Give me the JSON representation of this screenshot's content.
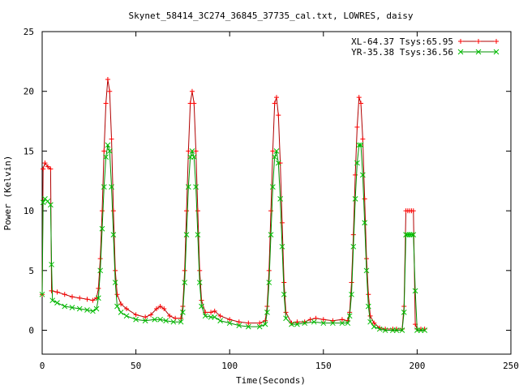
{
  "chart_data": {
    "type": "line",
    "title": "Skynet_58414_3C274_36845_37735_cal.txt, LOWRES, daisy",
    "xlabel": "Time(Seconds)",
    "ylabel": "Power (Kelvin)",
    "xlim": [
      0,
      250
    ],
    "ylim": [
      -2,
      25
    ],
    "xticks": [
      0,
      50,
      100,
      150,
      200,
      250
    ],
    "yticks": [
      0,
      5,
      10,
      15,
      20,
      25
    ],
    "grid": false,
    "legend_position": "top-right",
    "series": [
      {
        "name": "XL-64.37 Tsys:65.95",
        "color": "#ff0000",
        "line_color": "#b00000",
        "marker": "plus",
        "points": [
          [
            0,
            3
          ],
          [
            0.5,
            13.5
          ],
          [
            1.5,
            14
          ],
          [
            3,
            13.7
          ],
          [
            4.5,
            13.5
          ],
          [
            5,
            3.3
          ],
          [
            8,
            3.2
          ],
          [
            12,
            3
          ],
          [
            16,
            2.8
          ],
          [
            20,
            2.7
          ],
          [
            24,
            2.6
          ],
          [
            27,
            2.5
          ],
          [
            29,
            2.7
          ],
          [
            30,
            3.5
          ],
          [
            31,
            6
          ],
          [
            32,
            10
          ],
          [
            33,
            15
          ],
          [
            34,
            19
          ],
          [
            35,
            21
          ],
          [
            36,
            20
          ],
          [
            37,
            16
          ],
          [
            38,
            10
          ],
          [
            39,
            5
          ],
          [
            40,
            3
          ],
          [
            42,
            2.2
          ],
          [
            45,
            1.8
          ],
          [
            50,
            1.3
          ],
          [
            55,
            1.1
          ],
          [
            58,
            1.3
          ],
          [
            61,
            1.8
          ],
          [
            63,
            2
          ],
          [
            65,
            1.8
          ],
          [
            68,
            1.2
          ],
          [
            71,
            1
          ],
          [
            74,
            1
          ],
          [
            75,
            2
          ],
          [
            76,
            5
          ],
          [
            77,
            10
          ],
          [
            78,
            15
          ],
          [
            79,
            19
          ],
          [
            80,
            20
          ],
          [
            81,
            19
          ],
          [
            82,
            15
          ],
          [
            83,
            10
          ],
          [
            84,
            5
          ],
          [
            85,
            2.5
          ],
          [
            87,
            1.5
          ],
          [
            90,
            1.5
          ],
          [
            92,
            1.6
          ],
          [
            95,
            1.2
          ],
          [
            100,
            0.9
          ],
          [
            105,
            0.7
          ],
          [
            110,
            0.6
          ],
          [
            116,
            0.6
          ],
          [
            119,
            0.8
          ],
          [
            120,
            2
          ],
          [
            121,
            5
          ],
          [
            122,
            10
          ],
          [
            123,
            15
          ],
          [
            124,
            19
          ],
          [
            125,
            19.5
          ],
          [
            126,
            18
          ],
          [
            127,
            14
          ],
          [
            128,
            9
          ],
          [
            129,
            4
          ],
          [
            130,
            1.5
          ],
          [
            133,
            0.6
          ],
          [
            136,
            0.7
          ],
          [
            140,
            0.7
          ],
          [
            143,
            0.9
          ],
          [
            146,
            1
          ],
          [
            150,
            0.9
          ],
          [
            155,
            0.8
          ],
          [
            160,
            0.9
          ],
          [
            163,
            0.8
          ],
          [
            164,
            1.5
          ],
          [
            165,
            4
          ],
          [
            166,
            8
          ],
          [
            167,
            13
          ],
          [
            168,
            17
          ],
          [
            169,
            19.5
          ],
          [
            170,
            19
          ],
          [
            171,
            16
          ],
          [
            172,
            11
          ],
          [
            173,
            6
          ],
          [
            174,
            3
          ],
          [
            175,
            1.2
          ],
          [
            177,
            0.6
          ],
          [
            180,
            0.2
          ],
          [
            183,
            0.1
          ],
          [
            187,
            0.1
          ],
          [
            189,
            0.1
          ],
          [
            192,
            0.1
          ],
          [
            193,
            2
          ],
          [
            194,
            10
          ],
          [
            195,
            10
          ],
          [
            196,
            10
          ],
          [
            197,
            10
          ],
          [
            198,
            10
          ],
          [
            199,
            0.5
          ],
          [
            200,
            0.1
          ],
          [
            202,
            0.1
          ],
          [
            204,
            0.1
          ]
        ]
      },
      {
        "name": "YR-35.38 Tsys:36.56",
        "color": "#00c000",
        "line_color": "#009000",
        "marker": "cross",
        "points": [
          [
            0,
            3
          ],
          [
            0.5,
            10.7
          ],
          [
            1.5,
            11
          ],
          [
            3,
            10.8
          ],
          [
            4.5,
            10.5
          ],
          [
            5,
            5.5
          ],
          [
            5.5,
            2.5
          ],
          [
            8,
            2.3
          ],
          [
            12,
            2
          ],
          [
            16,
            1.9
          ],
          [
            20,
            1.8
          ],
          [
            24,
            1.7
          ],
          [
            27,
            1.6
          ],
          [
            29,
            1.8
          ],
          [
            30,
            2.7
          ],
          [
            31,
            5
          ],
          [
            32,
            8.5
          ],
          [
            33,
            12
          ],
          [
            34,
            14.5
          ],
          [
            35,
            15.5
          ],
          [
            36,
            15
          ],
          [
            37,
            12
          ],
          [
            38,
            8
          ],
          [
            39,
            4
          ],
          [
            40,
            2
          ],
          [
            42,
            1.5
          ],
          [
            45,
            1.2
          ],
          [
            50,
            0.9
          ],
          [
            55,
            0.8
          ],
          [
            60,
            0.9
          ],
          [
            63,
            0.9
          ],
          [
            66,
            0.8
          ],
          [
            70,
            0.7
          ],
          [
            74,
            0.7
          ],
          [
            75,
            1.5
          ],
          [
            76,
            4
          ],
          [
            77,
            8
          ],
          [
            78,
            12
          ],
          [
            79,
            14.5
          ],
          [
            80,
            15
          ],
          [
            81,
            14.5
          ],
          [
            82,
            12
          ],
          [
            83,
            8
          ],
          [
            84,
            4
          ],
          [
            85,
            2
          ],
          [
            87,
            1.2
          ],
          [
            90,
            1.1
          ],
          [
            92,
            1.1
          ],
          [
            95,
            0.8
          ],
          [
            100,
            0.6
          ],
          [
            105,
            0.4
          ],
          [
            110,
            0.3
          ],
          [
            116,
            0.3
          ],
          [
            119,
            0.5
          ],
          [
            120,
            1.5
          ],
          [
            121,
            4
          ],
          [
            122,
            8
          ],
          [
            123,
            12
          ],
          [
            124,
            14.5
          ],
          [
            125,
            15
          ],
          [
            126,
            14
          ],
          [
            127,
            11
          ],
          [
            128,
            7
          ],
          [
            129,
            3
          ],
          [
            130,
            1
          ],
          [
            133,
            0.5
          ],
          [
            136,
            0.5
          ],
          [
            140,
            0.6
          ],
          [
            145,
            0.7
          ],
          [
            150,
            0.6
          ],
          [
            155,
            0.6
          ],
          [
            160,
            0.6
          ],
          [
            163,
            0.6
          ],
          [
            164,
            1.2
          ],
          [
            165,
            3
          ],
          [
            166,
            7
          ],
          [
            167,
            11
          ],
          [
            168,
            14
          ],
          [
            169,
            15.5
          ],
          [
            170,
            15.5
          ],
          [
            171,
            13
          ],
          [
            172,
            9
          ],
          [
            173,
            5
          ],
          [
            174,
            2
          ],
          [
            175,
            0.7
          ],
          [
            177,
            0.3
          ],
          [
            180,
            0.1
          ],
          [
            183,
            0
          ],
          [
            187,
            0
          ],
          [
            189,
            0
          ],
          [
            192,
            0
          ],
          [
            193,
            1.5
          ],
          [
            194,
            8
          ],
          [
            195,
            8
          ],
          [
            196,
            8
          ],
          [
            197,
            8
          ],
          [
            198,
            8
          ],
          [
            199,
            3.3
          ],
          [
            200,
            0
          ],
          [
            202,
            0
          ],
          [
            204,
            0
          ]
        ]
      }
    ]
  }
}
